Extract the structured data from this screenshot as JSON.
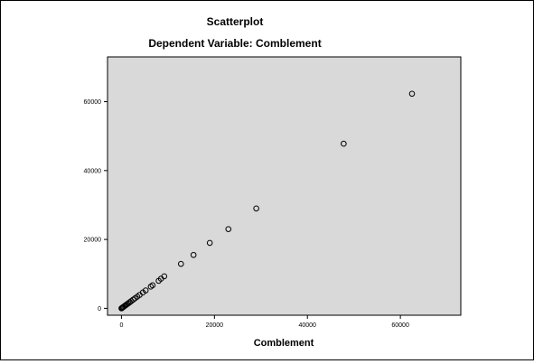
{
  "chart_data": {
    "type": "scatter",
    "title": "Scatterplot",
    "subtitle": "Dependent Variable: Comblement",
    "xlabel": "Comblement",
    "ylabel": "",
    "xlim": [
      -3000,
      73000
    ],
    "ylim": [
      -2000,
      73000
    ],
    "x_ticks": [
      0,
      20000,
      40000,
      60000
    ],
    "x_tick_labels": [
      "0",
      "20000",
      "40000",
      "60000"
    ],
    "y_ticks": [
      0,
      20000,
      40000,
      60000
    ],
    "y_tick_labels": [
      "0",
      "20000",
      "40000",
      "60000"
    ],
    "grid": false,
    "legend": "none",
    "plot_background": "#d9d9d9",
    "marker": "hollow-circle",
    "marker_color": "#000000",
    "points": [
      {
        "x": 62500,
        "y": 62300
      },
      {
        "x": 47800,
        "y": 47800
      },
      {
        "x": 29000,
        "y": 29000
      },
      {
        "x": 23000,
        "y": 23000
      },
      {
        "x": 19000,
        "y": 19000
      },
      {
        "x": 15500,
        "y": 15500
      },
      {
        "x": 12800,
        "y": 12900
      },
      {
        "x": 9200,
        "y": 9300
      },
      {
        "x": 8500,
        "y": 8600
      },
      {
        "x": 8000,
        "y": 8000
      },
      {
        "x": 6700,
        "y": 6700
      },
      {
        "x": 6300,
        "y": 6300
      },
      {
        "x": 5200,
        "y": 5200
      },
      {
        "x": 4600,
        "y": 4600
      },
      {
        "x": 3900,
        "y": 3900
      },
      {
        "x": 3400,
        "y": 3400
      },
      {
        "x": 2900,
        "y": 2900
      },
      {
        "x": 2500,
        "y": 2500
      },
      {
        "x": 2100,
        "y": 2100
      },
      {
        "x": 1800,
        "y": 1800
      },
      {
        "x": 1500,
        "y": 1500
      },
      {
        "x": 1200,
        "y": 1200
      },
      {
        "x": 1000,
        "y": 1000
      },
      {
        "x": 800,
        "y": 800
      },
      {
        "x": 600,
        "y": 600
      },
      {
        "x": 400,
        "y": 400
      },
      {
        "x": 250,
        "y": 250
      },
      {
        "x": 120,
        "y": 120
      },
      {
        "x": 50,
        "y": 50
      },
      {
        "x": 0,
        "y": 0
      }
    ]
  }
}
